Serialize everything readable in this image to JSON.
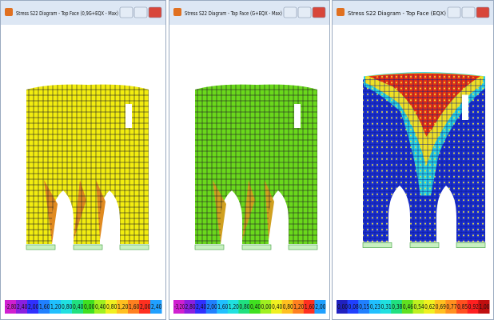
{
  "windows": [
    {
      "title": "Stress S22 Diagram - Top Face  (0,9G+EQX - Max)",
      "legend": [
        "-2,80",
        "2,40",
        "2,00",
        "1,60",
        "1,20",
        "0,80",
        "0,40",
        "0,00",
        "0,40",
        "0,80",
        "1,20",
        "1,60",
        "2,00",
        "2,40"
      ]
    },
    {
      "title": "Stress S22 Diagram - Top Face  (G+EQX - Max)",
      "legend": [
        "-3,20",
        "2,80",
        "2,40",
        "2,00",
        "1,60",
        "1,20",
        "0,80",
        "0,40",
        "0,00",
        "0,40",
        "0,80",
        "1,20",
        "1,60",
        "2,00"
      ]
    },
    {
      "title": "Stress S22 Diagram - Top Face  (EQX)",
      "legend": [
        "0,00",
        "0,08",
        "0,15",
        "0,23",
        "0,31",
        "0,38",
        "0,46",
        "0,54",
        "0,62",
        "0,69",
        "0,77",
        "0,85",
        "0,92",
        "1,00"
      ]
    }
  ]
}
